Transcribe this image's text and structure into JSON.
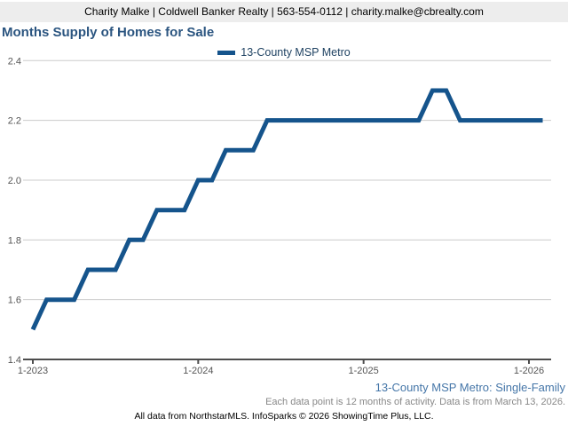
{
  "header": {
    "contact_line": "Charity Malke | Coldwell Banker Realty | 563-554-0112 | charity.malke@cbrealty.com"
  },
  "title": "Months Supply of Homes for Sale",
  "legend": {
    "label": "13-County MSP Metro"
  },
  "colors": {
    "line": "#15548C",
    "title_text": "#2B5580",
    "legend_text": "#1F4262",
    "footer_link": "#4576A8",
    "grid": "#CCCCCC",
    "axis": "#4D4D4D",
    "tick_label": "#555555",
    "header_bg": "#EDEDED",
    "footnote_gray": "#888888"
  },
  "chart_data": {
    "type": "line",
    "title": "Months Supply of Homes for Sale",
    "xlabel": "",
    "ylabel": "",
    "ylim": [
      1.4,
      2.4
    ],
    "yticks": [
      1.4,
      1.6,
      1.8,
      2.0,
      2.2,
      2.4
    ],
    "grid": "horizontal",
    "legend_position": "top-center",
    "x": [
      "1-2023",
      "2-2023",
      "3-2023",
      "4-2023",
      "5-2023",
      "6-2023",
      "7-2023",
      "8-2023",
      "9-2023",
      "10-2023",
      "11-2023",
      "12-2023",
      "1-2024",
      "2-2024",
      "3-2024",
      "4-2024",
      "5-2024",
      "6-2024",
      "7-2024",
      "8-2024",
      "9-2024",
      "10-2024",
      "11-2024",
      "12-2024",
      "1-2025",
      "2-2025",
      "3-2025",
      "4-2025",
      "5-2025",
      "6-2025",
      "7-2025",
      "8-2025",
      "9-2025",
      "10-2025",
      "11-2025",
      "12-2025",
      "1-2026",
      "2-2026"
    ],
    "xticks": [
      {
        "index": 0,
        "label": "1-2023"
      },
      {
        "index": 12,
        "label": "1-2024"
      },
      {
        "index": 24,
        "label": "1-2025"
      },
      {
        "index": 36,
        "label": "1-2026"
      }
    ],
    "series": [
      {
        "name": "13-County MSP Metro",
        "values": [
          1.5,
          1.6,
          1.6,
          1.6,
          1.7,
          1.7,
          1.7,
          1.8,
          1.8,
          1.9,
          1.9,
          1.9,
          2.0,
          2.0,
          2.1,
          2.1,
          2.1,
          2.2,
          2.2,
          2.2,
          2.2,
          2.2,
          2.2,
          2.2,
          2.2,
          2.2,
          2.2,
          2.2,
          2.2,
          2.3,
          2.3,
          2.2,
          2.2,
          2.2,
          2.2,
          2.2,
          2.2,
          2.2
        ]
      }
    ]
  },
  "footer": {
    "series_note": "13-County MSP Metro: Single-Family",
    "data_note": "Each data point is 12 months of activity. Data is from March 13, 2026.",
    "attribution": "All data from NorthstarMLS. InfoSparks © 2026 ShowingTime Plus, LLC."
  }
}
